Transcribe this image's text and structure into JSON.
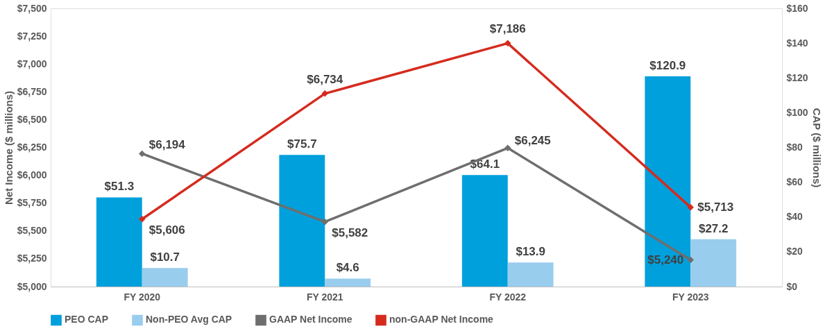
{
  "chart_data": {
    "type": "bar",
    "categories": [
      "FY 2020",
      "FY 2021",
      "FY 2022",
      "FY 2023"
    ],
    "ylabel": "Net Income ($ millions)",
    "y2label": "CAP ($ millions)",
    "ylim": [
      5000,
      7500
    ],
    "yticks": [
      {
        "value": 5000,
        "label": "$5,000"
      },
      {
        "value": 5250,
        "label": "$5,250"
      },
      {
        "value": 5500,
        "label": "$5,500"
      },
      {
        "value": 5750,
        "label": "$5,750"
      },
      {
        "value": 6000,
        "label": "$6,000"
      },
      {
        "value": 6250,
        "label": "$6,250"
      },
      {
        "value": 6500,
        "label": "$6,500"
      },
      {
        "value": 6750,
        "label": "$6,750"
      },
      {
        "value": 7000,
        "label": "$7,000"
      },
      {
        "value": 7250,
        "label": "$7,250"
      },
      {
        "value": 7500,
        "label": "$7,500"
      }
    ],
    "y2lim": [
      0,
      160
    ],
    "y2ticks": [
      {
        "value": 0,
        "label": "$0"
      },
      {
        "value": 20,
        "label": "$20"
      },
      {
        "value": 40,
        "label": "$40"
      },
      {
        "value": 60,
        "label": "$60"
      },
      {
        "value": 80,
        "label": "$80"
      },
      {
        "value": 100,
        "label": "$100"
      },
      {
        "value": 120,
        "label": "$120"
      },
      {
        "value": 140,
        "label": "$140"
      },
      {
        "value": 160,
        "label": "$160"
      }
    ],
    "grid": false,
    "legend": "bottom",
    "marker": "diamond",
    "line_style": "solid",
    "series": [
      {
        "name": "PEO CAP",
        "type": "bar",
        "axis": "y2",
        "color": "#00a0dc",
        "values": [
          51.3,
          75.7,
          64.1,
          120.9
        ],
        "value_labels": [
          "$51.3",
          "$75.7",
          "$64.1",
          "$120.9"
        ]
      },
      {
        "name": "Non-PEO Avg CAP",
        "type": "bar",
        "axis": "y2",
        "color": "#99cdee",
        "values": [
          10.7,
          4.6,
          13.9,
          27.2
        ],
        "value_labels": [
          "$10.7",
          "$4.6",
          "$13.9",
          "$27.2"
        ]
      },
      {
        "name": "GAAP Net Income",
        "type": "line",
        "color": "#6e6e6e",
        "values": [
          6194,
          5582,
          6245,
          5240
        ],
        "value_labels": [
          "$6,194",
          "$5,582",
          "$6,245",
          "$5,240"
        ]
      },
      {
        "name": "non-GAAP Net Income",
        "type": "line",
        "color": "#d52b1e",
        "values": [
          5606,
          6734,
          7186,
          5713
        ],
        "value_labels": [
          "$5,606",
          "$6,734",
          "$7,186",
          "$5,713"
        ]
      }
    ]
  }
}
